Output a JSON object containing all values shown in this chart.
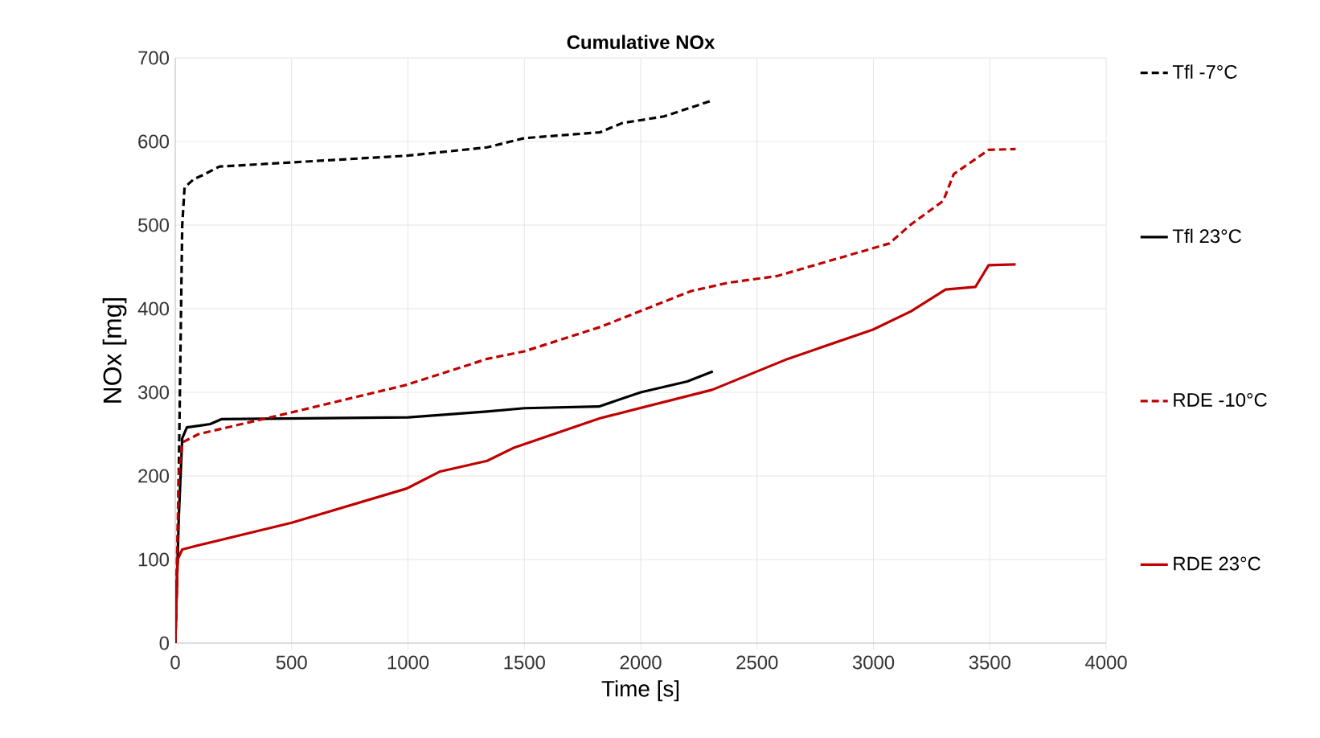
{
  "chart_data": {
    "type": "line",
    "title": "Cumulative NOx",
    "xlabel": "Time [s]",
    "ylabel": "NOx [mg]",
    "xlim": [
      0,
      4000
    ],
    "xticks": [
      0,
      500,
      1000,
      1500,
      2000,
      2500,
      3000,
      3500,
      4000
    ],
    "ylim": [
      0,
      700
    ],
    "yticks": [
      0,
      100,
      200,
      300,
      400,
      500,
      600,
      700
    ],
    "grid": true,
    "legend": "right",
    "marker": "none",
    "series": [
      {
        "name": "Tfl -7°C",
        "color": "#000000",
        "line_style": "dashed",
        "x": [
          0,
          10,
          20,
          30,
          40,
          80,
          120,
          190,
          500,
          995,
          1340,
          1500,
          1825,
          1920,
          2100,
          2307
        ],
        "values": [
          0,
          100,
          300,
          500,
          545,
          555,
          560,
          570,
          575,
          583,
          593,
          604,
          611,
          622,
          630,
          649
        ]
      },
      {
        "name": "Tfl 23°C",
        "color": "#000000",
        "line_style": "solid",
        "x": [
          0,
          15,
          30,
          50,
          150,
          200,
          1000,
          1340,
          1500,
          1820,
          2000,
          2200,
          2310
        ],
        "values": [
          0,
          150,
          245,
          258,
          262,
          268,
          270,
          277,
          281,
          283,
          300,
          313,
          325
        ]
      },
      {
        "name": "RDE -10°C",
        "color": "#c00000",
        "line_style": "dashed",
        "x": [
          0,
          15,
          30,
          100,
          500,
          995,
          1340,
          1500,
          1825,
          2215,
          2375,
          2585,
          3068,
          3162,
          3300,
          3345,
          3495,
          3611
        ],
        "values": [
          0,
          200,
          240,
          250,
          276,
          309,
          340,
          349,
          378,
          421,
          431,
          439,
          478,
          501,
          529,
          561,
          590,
          591
        ]
      },
      {
        "name": "RDE 23°C",
        "color": "#c00000",
        "line_style": "solid",
        "x": [
          0,
          10,
          30,
          100,
          500,
          995,
          1135,
          1340,
          1457,
          1825,
          2307,
          2632,
          2998,
          3162,
          3310,
          3438,
          3495,
          3611
        ],
        "values": [
          0,
          100,
          112,
          117,
          144,
          185,
          205,
          218,
          234,
          269,
          303,
          340,
          375,
          397,
          423,
          426,
          452,
          453
        ]
      }
    ]
  }
}
